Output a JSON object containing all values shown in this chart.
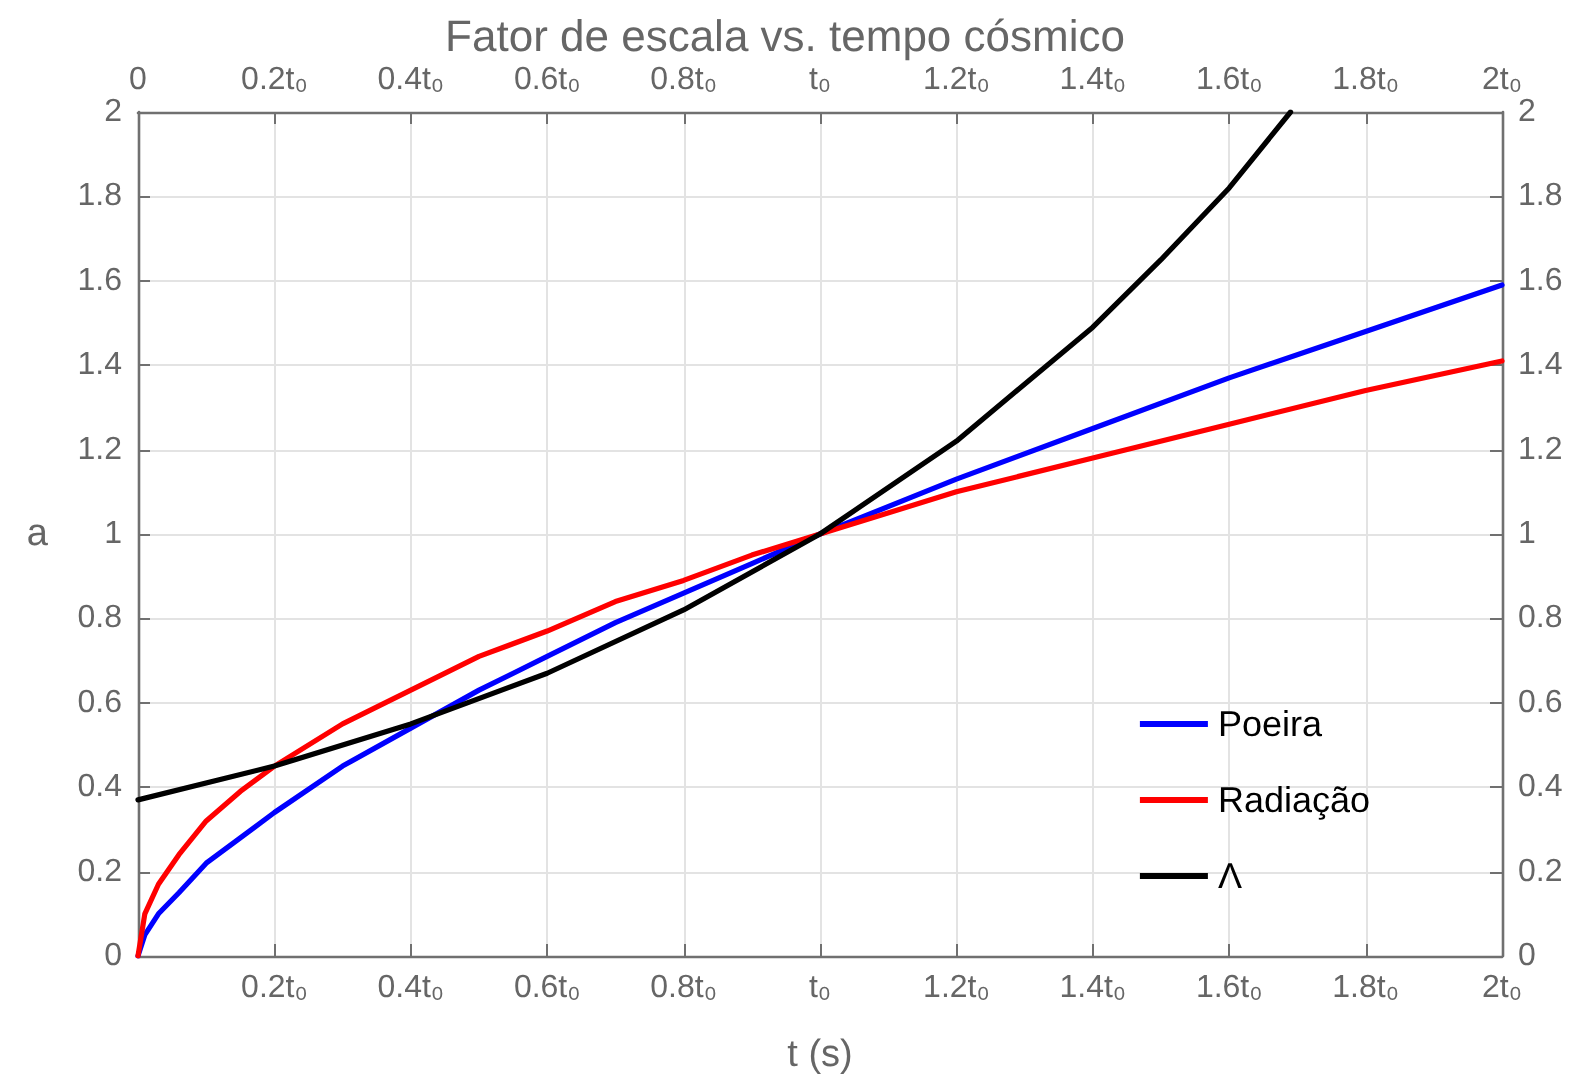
{
  "chart_data": {
    "type": "line",
    "title": "Fator de escala vs. tempo cósmico",
    "xlabel": "t (s)",
    "ylabel": "a",
    "series": [
      {
        "name": "Poeira",
        "color": "#0000ff",
        "x": [
          0,
          0.01,
          0.03,
          0.06,
          0.1,
          0.15,
          0.2,
          0.3,
          0.4,
          0.5,
          0.6,
          0.7,
          0.8,
          0.9,
          1,
          1.2,
          1.4,
          1.6,
          1.8,
          2
        ],
        "values": [
          0,
          0.05,
          0.1,
          0.15,
          0.22,
          0.28,
          0.34,
          0.45,
          0.54,
          0.63,
          0.71,
          0.79,
          0.86,
          0.93,
          1,
          1.13,
          1.25,
          1.37,
          1.48,
          1.59
        ]
      },
      {
        "name": "Radiação",
        "color": "#ff0000",
        "x": [
          0,
          0.01,
          0.03,
          0.06,
          0.1,
          0.15,
          0.2,
          0.3,
          0.4,
          0.5,
          0.6,
          0.7,
          0.8,
          0.9,
          1,
          1.2,
          1.4,
          1.6,
          1.8,
          2
        ],
        "values": [
          0,
          0.1,
          0.17,
          0.24,
          0.32,
          0.39,
          0.45,
          0.55,
          0.63,
          0.71,
          0.77,
          0.84,
          0.89,
          0.95,
          1,
          1.1,
          1.18,
          1.26,
          1.34,
          1.41
        ]
      },
      {
        "name": "Λ",
        "color": "#000000",
        "x": [
          0,
          0.2,
          0.4,
          0.6,
          0.8,
          1,
          1.2,
          1.4,
          1.5,
          1.6,
          1.69
        ],
        "values": [
          0.37,
          0.45,
          0.55,
          0.67,
          0.82,
          1,
          1.22,
          1.49,
          1.65,
          1.82,
          2
        ]
      }
    ],
    "xlim": [
      0,
      2
    ],
    "xticks": [
      {
        "value": 0,
        "label": null
      },
      {
        "value": 0.2,
        "label": "0.2t₀"
      },
      {
        "value": 0.4,
        "label": "0.4t₀"
      },
      {
        "value": 0.6,
        "label": "0.6t₀"
      },
      {
        "value": 0.8,
        "label": "0.8t₀"
      },
      {
        "value": 1,
        "label": "t₀"
      },
      {
        "value": 1.2,
        "label": "1.2t₀"
      },
      {
        "value": 1.4,
        "label": "1.4t₀"
      },
      {
        "value": 1.6,
        "label": "1.6t₀"
      },
      {
        "value": 1.8,
        "label": "1.8t₀"
      },
      {
        "value": 2,
        "label": "2t₀"
      }
    ],
    "x2lim": [
      0,
      2
    ],
    "x2ticks": [
      0,
      {
        "value": 0.2,
        "label": "0.2t₀"
      },
      {
        "value": 0.4,
        "label": "0.4t₀"
      },
      {
        "value": 0.6,
        "label": "0.6t₀"
      },
      {
        "value": 0.8,
        "label": "0.8t₀"
      },
      {
        "value": 1,
        "label": "t₀"
      },
      {
        "value": 1.2,
        "label": "1.2t₀"
      },
      {
        "value": 1.4,
        "label": "1.4t₀"
      },
      {
        "value": 1.6,
        "label": "1.6t₀"
      },
      {
        "value": 1.8,
        "label": "1.8t₀"
      },
      {
        "value": 2,
        "label": "2t₀"
      }
    ],
    "ylim": [
      0,
      2
    ],
    "yticks": [
      0,
      0.2,
      0.4,
      0.6,
      0.8,
      1,
      1.2,
      1.4,
      1.6,
      1.8,
      2
    ],
    "y2lim": [
      0,
      2
    ],
    "y2ticks": [
      0,
      0.2,
      0.4,
      0.6,
      0.8,
      1,
      1.2,
      1.4,
      1.6,
      1.8,
      2
    ],
    "grid": true,
    "legend": "bottom right",
    "marker": "none",
    "line_style": "solid"
  }
}
